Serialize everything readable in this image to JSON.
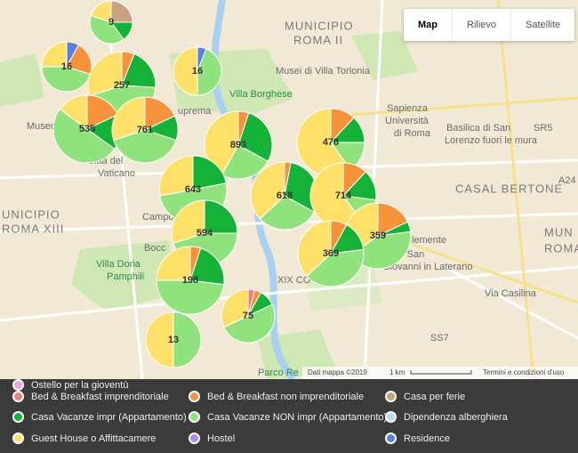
{
  "map_type_buttons": [
    "Map",
    "Rilievo",
    "Satellite"
  ],
  "map_labels": [
    "MUNICIPIO",
    "ROMA II",
    "Musei di Villa Torlonia",
    "Sapienza",
    "Università",
    "di Roma",
    "Basilica di San",
    "Lorenzo fuori le mura",
    "CASAL BERTONE",
    "Villa Borghese",
    "UNICIPIO",
    "ROMA XIII",
    "Città del",
    "Vaticano",
    "Campo",
    "Bocc",
    "Villa Doria",
    "Pamphili",
    "Clemente",
    "di San",
    "Giovanni in Laterano",
    "Via Casilina",
    "XIX CO",
    "Parco Re",
    "Museo",
    "uprema",
    "MUN",
    "ROMA",
    "SR5",
    "A24",
    "SS7"
  ],
  "markers": [
    {
      "count": 9,
      "segments": [
        {
          "color": "#c9a27e",
          "share": 25
        },
        {
          "color": "#14b337",
          "share": 15
        },
        {
          "color": "#8fe27c",
          "share": 40
        },
        {
          "color": "#ffe169",
          "share": 20
        }
      ]
    },
    {
      "count": 16,
      "segments": [
        {
          "color": "#5a7fe0",
          "share": 8
        },
        {
          "color": "#f5923a",
          "share": 22
        },
        {
          "color": "#8fe27c",
          "share": 45
        },
        {
          "color": "#ffe169",
          "share": 25
        }
      ]
    },
    {
      "count": 257,
      "segments": [
        {
          "color": "#f5923a",
          "share": 6
        },
        {
          "color": "#14b337",
          "share": 20
        },
        {
          "color": "#8fe27c",
          "share": 44
        },
        {
          "color": "#ffe169",
          "share": 30
        }
      ]
    },
    {
      "count": 16,
      "segments": [
        {
          "color": "#5a7fe0",
          "share": 6
        },
        {
          "color": "#8fe27c",
          "share": 44
        },
        {
          "color": "#ffe169",
          "share": 50
        }
      ]
    },
    {
      "count": 535,
      "segments": [
        {
          "color": "#f5923a",
          "share": 18
        },
        {
          "color": "#14b337",
          "share": 17
        },
        {
          "color": "#8fe27c",
          "share": 50
        },
        {
          "color": "#ffe169",
          "share": 15
        }
      ]
    },
    {
      "count": 761,
      "segments": [
        {
          "color": "#f5923a",
          "share": 18
        },
        {
          "color": "#14b337",
          "share": 12
        },
        {
          "color": "#8fe27c",
          "share": 40
        },
        {
          "color": "#ffe169",
          "share": 30
        }
      ]
    },
    {
      "count": 893,
      "segments": [
        {
          "color": "#f5923a",
          "share": 5
        },
        {
          "color": "#14b337",
          "share": 28
        },
        {
          "color": "#8fe27c",
          "share": 25
        },
        {
          "color": "#ffe169",
          "share": 42
        }
      ]
    },
    {
      "count": 478,
      "segments": [
        {
          "color": "#f5923a",
          "share": 12
        },
        {
          "color": "#14b337",
          "share": 13
        },
        {
          "color": "#8fe27c",
          "share": 15
        },
        {
          "color": "#ffe169",
          "share": 60
        }
      ]
    },
    {
      "count": 643,
      "segments": [
        {
          "color": "#14b337",
          "share": 22
        },
        {
          "color": "#8fe27c",
          "share": 50
        },
        {
          "color": "#ffe169",
          "share": 28
        }
      ]
    },
    {
      "count": 618,
      "segments": [
        {
          "color": "#f5923a",
          "share": 3
        },
        {
          "color": "#14b337",
          "share": 30
        },
        {
          "color": "#8fe27c",
          "share": 30
        },
        {
          "color": "#ffe169",
          "share": 37
        }
      ]
    },
    {
      "count": 714,
      "segments": [
        {
          "color": "#f5923a",
          "share": 12
        },
        {
          "color": "#14b337",
          "share": 15
        },
        {
          "color": "#8fe27c",
          "share": 13
        },
        {
          "color": "#ffe169",
          "share": 60
        }
      ]
    },
    {
      "count": 594,
      "segments": [
        {
          "color": "#14b337",
          "share": 25
        },
        {
          "color": "#8fe27c",
          "share": 45
        },
        {
          "color": "#ffe169",
          "share": 30
        }
      ]
    },
    {
      "count": 359,
      "segments": [
        {
          "color": "#f5923a",
          "share": 18
        },
        {
          "color": "#14b337",
          "share": 5
        },
        {
          "color": "#8fe27c",
          "share": 42
        },
        {
          "color": "#ffe169",
          "share": 35
        }
      ]
    },
    {
      "count": 369,
      "segments": [
        {
          "color": "#f5923a",
          "share": 8
        },
        {
          "color": "#14b337",
          "share": 15
        },
        {
          "color": "#8fe27c",
          "share": 40
        },
        {
          "color": "#ffe169",
          "share": 37
        }
      ]
    },
    {
      "count": 198,
      "segments": [
        {
          "color": "#f5923a",
          "share": 5
        },
        {
          "color": "#14b337",
          "share": 22
        },
        {
          "color": "#8fe27c",
          "share": 48
        },
        {
          "color": "#ffe169",
          "share": 25
        }
      ]
    },
    {
      "count": 75,
      "segments": [
        {
          "color": "#f47c7c",
          "share": 4
        },
        {
          "color": "#f5923a",
          "share": 4
        },
        {
          "color": "#14b337",
          "share": 10
        },
        {
          "color": "#8fe27c",
          "share": 50
        },
        {
          "color": "#ffe169",
          "share": 32
        }
      ]
    },
    {
      "count": 13,
      "segments": [
        {
          "color": "#8fe27c",
          "share": 50
        },
        {
          "color": "#ffe169",
          "share": 50
        }
      ]
    }
  ],
  "legend": [
    {
      "name": "Bed & Breakfast imprenditoriale",
      "color": "#f47c7c"
    },
    {
      "name": "Bed & Breakfast non imprenditoriale",
      "color": "#f5923a"
    },
    {
      "name": "Casa per ferie",
      "color": "#c9a27e"
    },
    {
      "name": "Casa Vacanze impr (Appartamento)",
      "color": "#14b337"
    },
    {
      "name": "Casa Vacanze NON impr (Appartamento)",
      "color": "#8fe27c"
    },
    {
      "name": "Dipendenza alberghiera",
      "color": "#b9dcf4"
    },
    {
      "name": "Guest House o Affittacamere",
      "color": "#ffe169"
    },
    {
      "name": "Hostel",
      "color": "#b48ae8"
    },
    {
      "name": "Residence",
      "color": "#5a7fe0"
    },
    {
      "name": "Ostello per la gioventù",
      "color": "#f5a0e0"
    }
  ],
  "attribution": {
    "data": "Dati mappa ©2019",
    "scale": "1 km",
    "terms": "Termini e condizioni d'uso"
  }
}
